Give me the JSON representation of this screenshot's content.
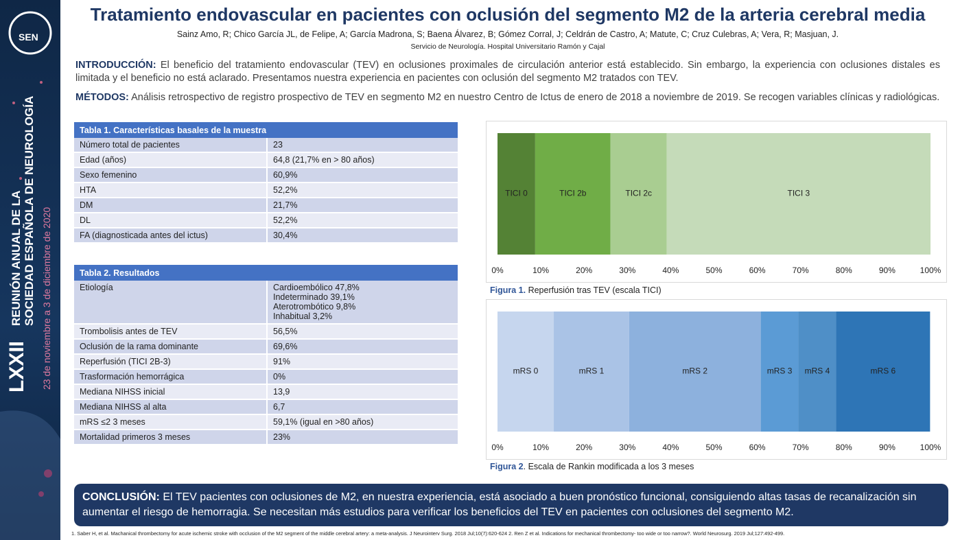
{
  "sidebar": {
    "edition": "LXXII",
    "line1": "REUNIÓN ANUAL DE LA",
    "line2": "SOCIEDAD ESPAÑOLA DE NEUROLOGÍA",
    "dates": "23 de noviembre a 3 de diciembre de 2020",
    "logo": "SEN"
  },
  "header": {
    "title": "Tratamiento endovascular en pacientes con oclusión del segmento M2 de la arteria cerebral media",
    "authors": "Sainz Amo, R; Chico García JL, de Felipe, A; García Madrona, S; Baena Álvarez, B; Gómez Corral, J; Celdrán de Castro, A; Matute, C; Cruz Culebras, A; Vera, R; Masjuan, J.",
    "affiliation": "Servicio de Neurología. Hospital Universitario Ramón y Cajal"
  },
  "intro": {
    "label": "INTRODUCCIÓN:",
    "text": "El beneficio del tratamiento endovascular (TEV) en oclusiones proximales de circulación anterior está establecido. Sin embargo, la experiencia con oclusiones distales es limitada y el beneficio no está aclarado. Presentamos nuestra experiencia en pacientes con oclusión del segmento M2 tratados con TEV."
  },
  "methods": {
    "label": "MÉTODOS:",
    "text": "Análisis retrospectivo de registro prospectivo de TEV en segmento M2 en nuestro Centro de Ictus de enero de 2018 a noviembre de 2019. Se recogen variables clínicas y radiológicas."
  },
  "tables": [
    {
      "title": "Tabla 1. Características basales de la muestra",
      "rows": [
        [
          "Número total de pacientes",
          [
            "23"
          ]
        ],
        [
          "Edad (años)",
          [
            "64,8 (21,7% en > 80 años)"
          ]
        ],
        [
          "Sexo femenino",
          [
            "60,9%"
          ]
        ],
        [
          "HTA",
          [
            "52,2%"
          ]
        ],
        [
          "DM",
          [
            "21,7%"
          ]
        ],
        [
          "DL",
          [
            "52,2%"
          ]
        ],
        [
          "FA (diagnosticada antes del ictus)",
          [
            "30,4%"
          ]
        ]
      ]
    },
    {
      "title": "Tabla 2. Resultados",
      "rows": [
        [
          "Etiología",
          [
            "Cardioembólico 47,8%",
            "Indeterminado 39,1%",
            "Aterotrombótico 9,8%",
            "Inhabitual 3,2%"
          ]
        ],
        [
          "Trombolisis antes de TEV",
          [
            "56,5%"
          ]
        ],
        [
          "Oclusión de la rama dominante",
          [
            "69,6%"
          ]
        ],
        [
          "Reperfusión (TICI 2B-3)",
          [
            "91%"
          ]
        ],
        [
          "Trasformación hemorrágica",
          [
            "0%"
          ]
        ],
        [
          "Mediana NIHSS inicial",
          [
            "13,9"
          ]
        ],
        [
          "Mediana NIHSS al alta",
          [
            "6,7"
          ]
        ],
        [
          "mRS ≤2 3 meses",
          [
            "59,1% (igual en >80 años)"
          ]
        ],
        [
          "Mortalidad primeros 3 meses",
          [
            "23%"
          ]
        ]
      ]
    }
  ],
  "chart_data": [
    {
      "type": "bar",
      "orientation": "horizontal",
      "stacked": true,
      "caption_label": "Figura 1.",
      "caption": "Reperfusión tras TEV (escala TICI)",
      "xlim": [
        0,
        100
      ],
      "xticks": [
        {
          "value": 0,
          "label": "0%"
        },
        {
          "value": 10,
          "label": "10%"
        },
        {
          "value": 20,
          "label": "20%"
        },
        {
          "value": 30,
          "label": "30%"
        },
        {
          "value": 40,
          "label": "40%"
        },
        {
          "value": 50,
          "label": "50%"
        },
        {
          "value": 60,
          "label": "60%"
        },
        {
          "value": 70,
          "label": "70%"
        },
        {
          "value": 80,
          "label": "80%"
        },
        {
          "value": 90,
          "label": "90%"
        },
        {
          "value": 100,
          "label": "100%"
        }
      ],
      "series": [
        {
          "name": "TICI 0",
          "color": "#548235",
          "values": [
            8.7
          ]
        },
        {
          "name": "TICI 2b",
          "color": "#70ad47",
          "values": [
            17.4
          ]
        },
        {
          "name": "TICI 2c",
          "color": "#a9cd91",
          "values": [
            13.0
          ]
        },
        {
          "name": "TICI 3",
          "color": "#c5dbb9",
          "values": [
            60.9
          ]
        }
      ]
    },
    {
      "type": "bar",
      "orientation": "horizontal",
      "stacked": true,
      "caption_label": "Figura 2",
      "caption": ". Escala de Rankin modificada a los 3 meses",
      "xlim": [
        0,
        100
      ],
      "xticks": [
        {
          "value": 0,
          "label": "0%"
        },
        {
          "value": 10,
          "label": "10%"
        },
        {
          "value": 20,
          "label": "20%"
        },
        {
          "value": 30,
          "label": "30%"
        },
        {
          "value": 40,
          "label": "40%"
        },
        {
          "value": 50,
          "label": "50%"
        },
        {
          "value": 60,
          "label": "60%"
        },
        {
          "value": 70,
          "label": "70%"
        },
        {
          "value": 80,
          "label": "80%"
        },
        {
          "value": 90,
          "label": "90%"
        },
        {
          "value": 100,
          "label": "100%"
        }
      ],
      "series": [
        {
          "name": "mRS 0",
          "color": "#c6d6ee",
          "values": [
            13.0
          ]
        },
        {
          "name": "mRS 1",
          "color": "#aac3e6",
          "values": [
            17.4
          ]
        },
        {
          "name": "mRS 2",
          "color": "#8db1dd",
          "values": [
            30.4
          ]
        },
        {
          "name": "mRS 3",
          "color": "#5b9bd5",
          "values": [
            8.7
          ]
        },
        {
          "name": "mRS 4",
          "color": "#4f8fc7",
          "values": [
            8.7
          ]
        },
        {
          "name": "mRS 6",
          "color": "#2e75b6",
          "values": [
            21.7
          ]
        }
      ]
    }
  ],
  "conclusion": {
    "label": "CONCLUSIÓN:",
    "text": "El TEV pacientes con oclusiones de M2, en nuestra experiencia, está asociado a buen pronóstico funcional, consiguiendo altas tasas de recanalización sin aumentar el riesgo de hemorragia. Se necesitan más estudios para verificar los beneficios del TEV en pacientes con oclusiones del segmento M2."
  },
  "references": "1. Saber H, et al. Machanical thrombectomy for acute ischemic stroke with occlusion of the M2 segment of the middle cerebral artery: a meta-analysis. J Neurointerv Surg. 2018 Jul;10(7):620-624 2. Ren Z et al. Indications for mechanical thrombectomy- too wide or too narrow?. World Neurosurg. 2019 Jul;127:492-499."
}
